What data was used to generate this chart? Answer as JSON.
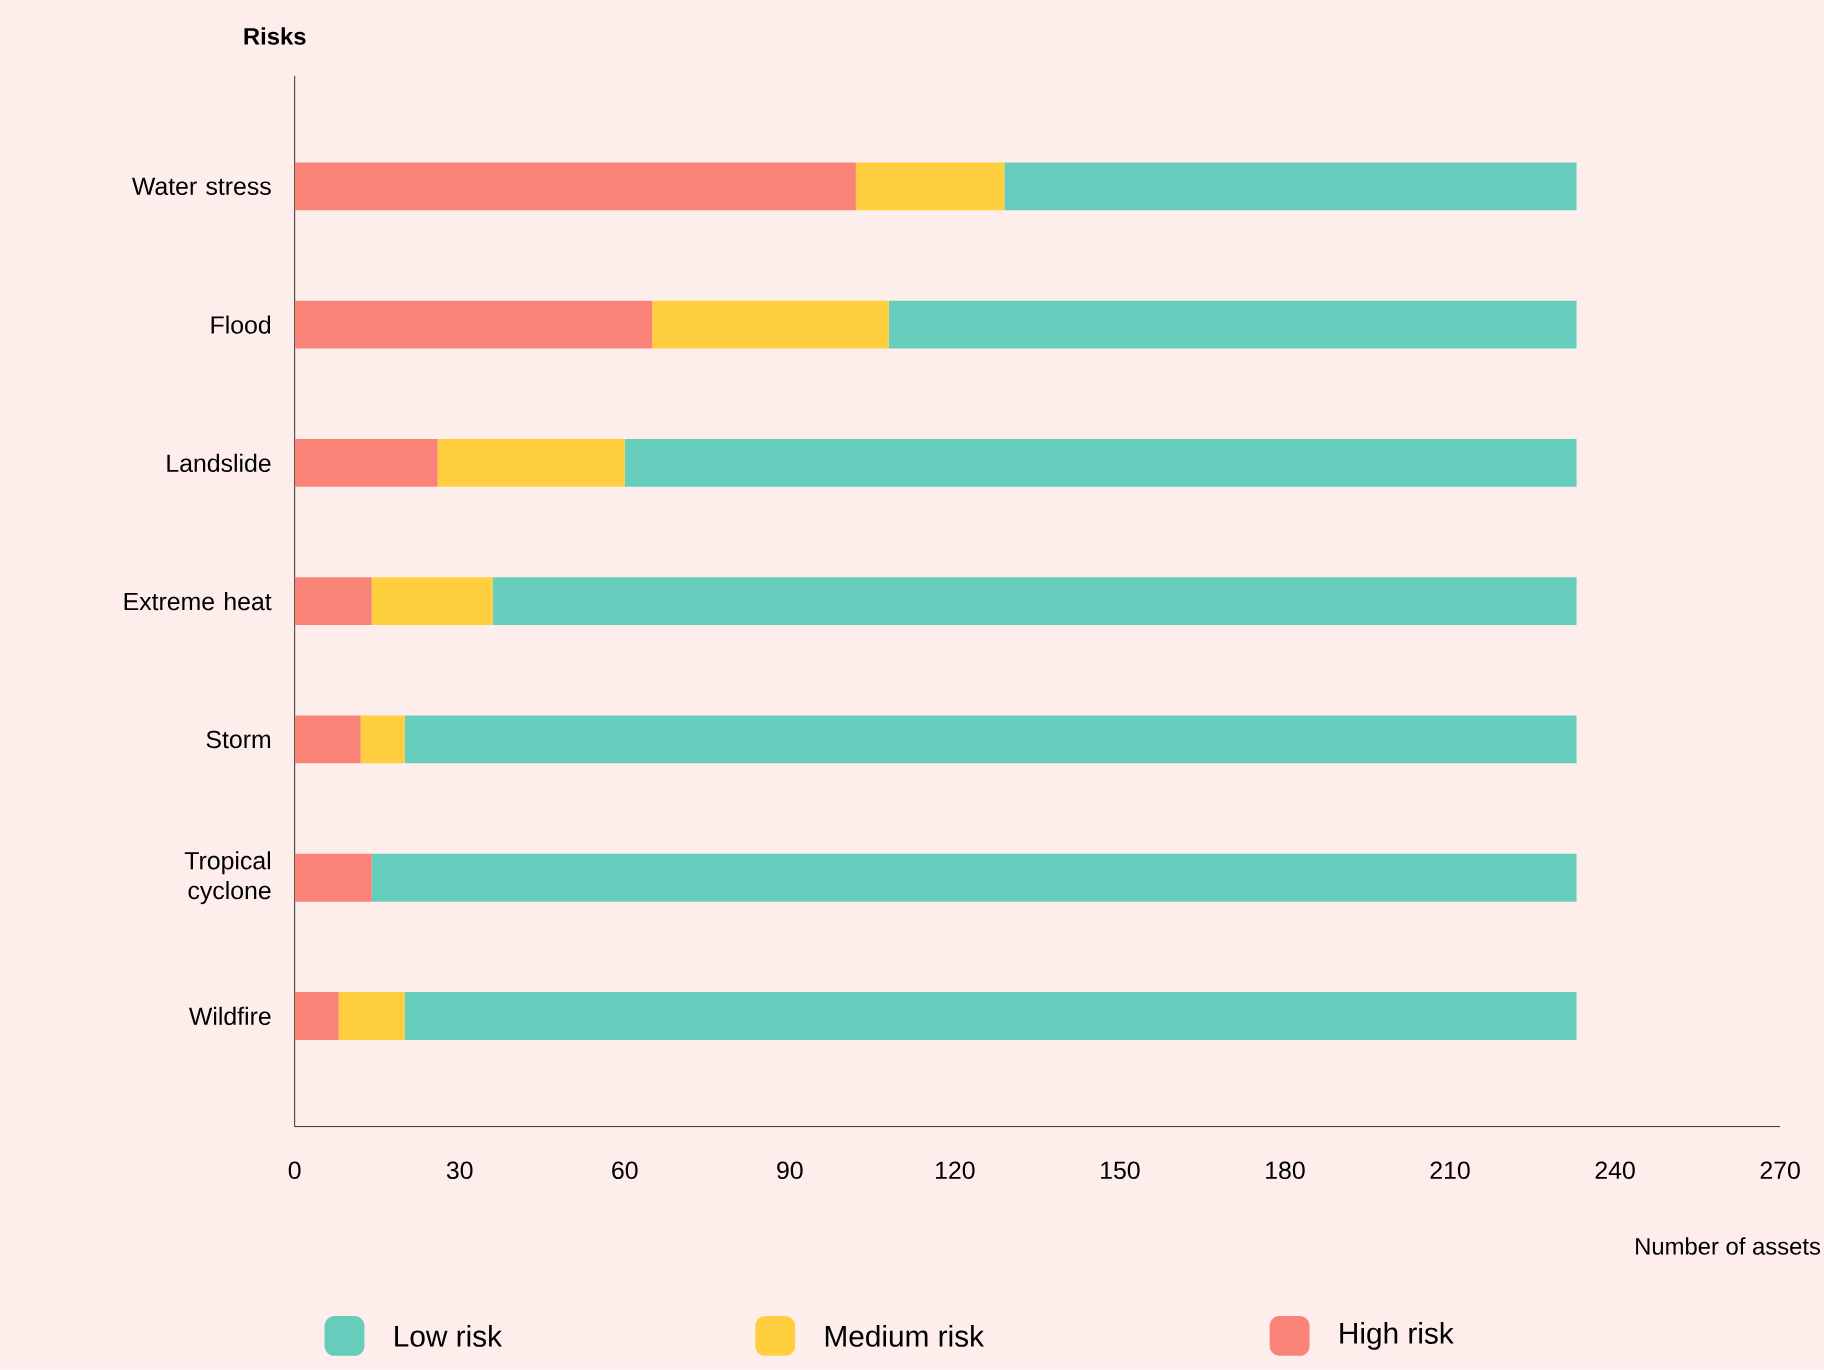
{
  "chart_data": {
    "type": "bar",
    "orientation": "horizontal",
    "stacked": true,
    "ylabel": "Risks",
    "xlabel": "Number of assets",
    "categories": [
      "Water stress",
      "Flood",
      "Landslide",
      "Extreme heat",
      "Storm",
      "Tropical cyclone",
      "Wildfire"
    ],
    "series": [
      {
        "name": "High risk",
        "color": "#f98377",
        "values": [
          102,
          65,
          26,
          14,
          12,
          14,
          8
        ]
      },
      {
        "name": "Medium risk",
        "color": "#ffcf40",
        "values": [
          27,
          43,
          34,
          22,
          8,
          0,
          12
        ]
      },
      {
        "name": "Low risk",
        "color": "#66cdbd",
        "values": [
          104,
          125,
          173,
          197,
          213,
          219,
          213
        ]
      }
    ],
    "xlim": [
      0,
      270
    ],
    "xticks": [
      0,
      30,
      60,
      90,
      120,
      150,
      180,
      210,
      240,
      270
    ],
    "grid": false,
    "legend": "bottom"
  }
}
